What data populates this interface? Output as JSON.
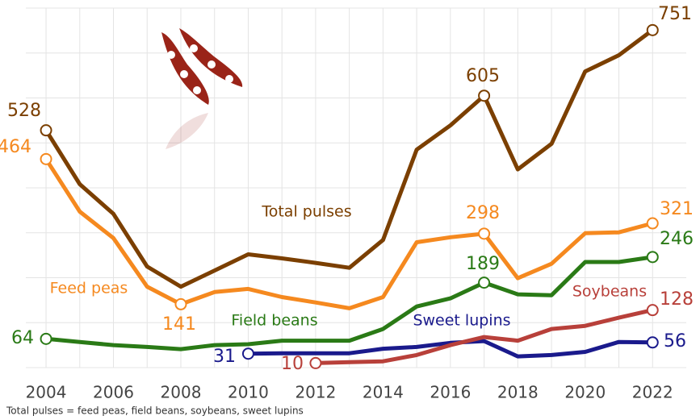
{
  "chart_data": {
    "type": "line",
    "footnote": "Total pulses = feed peas, field beans, soybeans, sweet lupins",
    "x": [
      2004,
      2005,
      2006,
      2007,
      2008,
      2009,
      2010,
      2011,
      2012,
      2013,
      2014,
      2015,
      2016,
      2017,
      2018,
      2019,
      2020,
      2021,
      2022
    ],
    "xlim": [
      2003.4,
      2023
    ],
    "xticks": [
      2004,
      2006,
      2008,
      2010,
      2012,
      2014,
      2016,
      2018,
      2020,
      2022
    ],
    "ylim": [
      0,
      800
    ],
    "yticks": [
      0,
      100,
      200,
      300,
      400,
      500,
      600,
      700,
      800
    ],
    "grid": true,
    "series": [
      {
        "name": "Total pulses",
        "color": "#7b3f00",
        "values": [
          528,
          408,
          342,
          225,
          180,
          216,
          252,
          243,
          233,
          222,
          284,
          485,
          539,
          605,
          441,
          498,
          659,
          695,
          751
        ]
      },
      {
        "name": "Feed peas",
        "color": "#f5891f",
        "values": [
          464,
          347,
          288,
          180,
          141,
          168,
          175,
          157,
          145,
          132,
          157,
          279,
          290,
          298,
          199,
          231,
          299,
          301,
          321
        ]
      },
      {
        "name": "Field beans",
        "color": "#2a7a16",
        "values": [
          64,
          57,
          50,
          46,
          41,
          50,
          52,
          60,
          60,
          60,
          86,
          136,
          154,
          189,
          163,
          161,
          235,
          235,
          246
        ]
      },
      {
        "name": "Sweet lupins",
        "color": "#1a1a8c",
        "values": [
          null,
          null,
          null,
          null,
          null,
          null,
          31,
          32,
          32,
          32,
          42,
          46,
          55,
          59,
          25,
          28,
          35,
          57,
          56
        ]
      },
      {
        "name": "Soybeans",
        "color": "#b8403a",
        "values": [
          null,
          null,
          null,
          null,
          null,
          null,
          null,
          null,
          10,
          12,
          14,
          28,
          50,
          68,
          60,
          86,
          93,
          111,
          128
        ]
      }
    ]
  }
}
